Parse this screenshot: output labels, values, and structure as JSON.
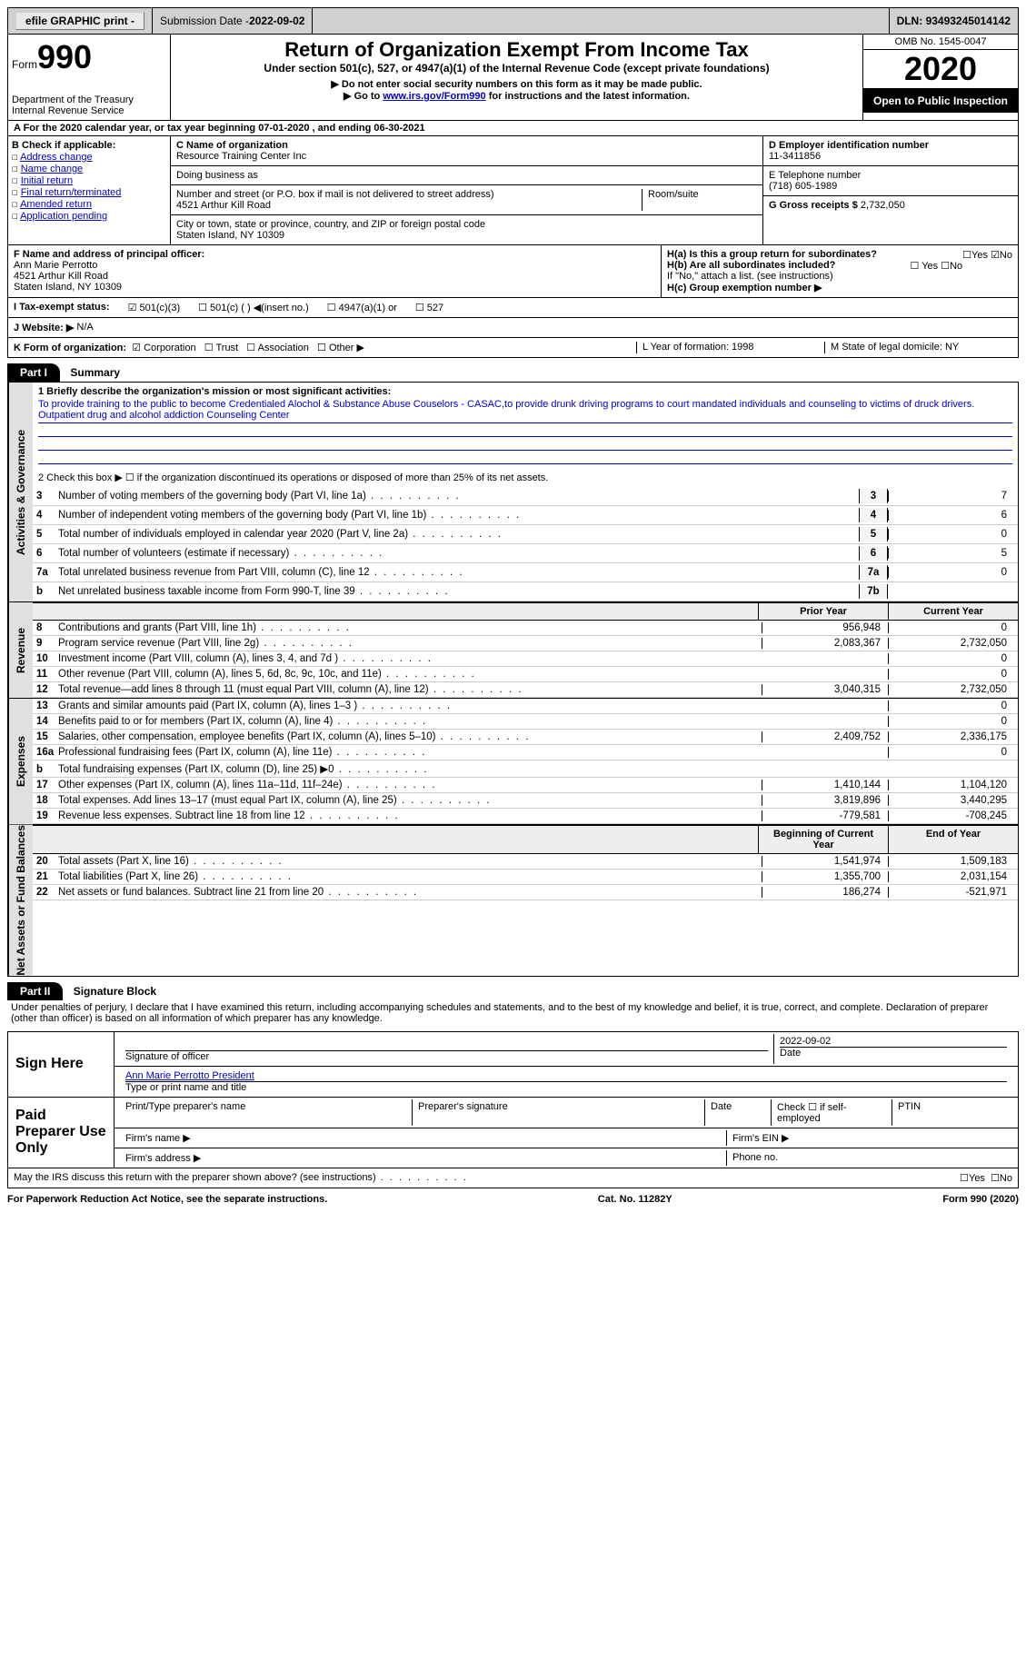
{
  "topbar": {
    "efile": "efile GRAPHIC print -",
    "submission_label": "Submission Date - ",
    "submission_date": "2022-09-02",
    "dln_label": "DLN: ",
    "dln": "93493245014142"
  },
  "header": {
    "form_word": "Form",
    "form_num": "990",
    "dept": "Department of the Treasury",
    "irs": "Internal Revenue Service",
    "title": "Return of Organization Exempt From Income Tax",
    "subtitle": "Under section 501(c), 527, or 4947(a)(1) of the Internal Revenue Code (except private foundations)",
    "note1": "▶ Do not enter social security numbers on this form as it may be made public.",
    "note2_pre": "▶ Go to ",
    "note2_link": "www.irs.gov/Form990",
    "note2_post": " for instructions and the latest information.",
    "omb": "OMB No. 1545-0047",
    "year": "2020",
    "otp": "Open to Public Inspection"
  },
  "row_a": "A For the 2020 calendar year, or tax year beginning 07-01-2020   , and ending 06-30-2021",
  "box_b": {
    "label": "B Check if applicable:",
    "items": [
      "Address change",
      "Name change",
      "Initial return",
      "Final return/terminated",
      "Amended return",
      "Application pending"
    ]
  },
  "box_c": {
    "label": "C Name of organization",
    "name": "Resource Training Center Inc",
    "dba_label": "Doing business as",
    "addr_label": "Number and street (or P.O. box if mail is not delivered to street address)",
    "room_label": "Room/suite",
    "addr": "4521 Arthur Kill Road",
    "city_label": "City or town, state or province, country, and ZIP or foreign postal code",
    "city": "Staten Island, NY  10309"
  },
  "box_d": {
    "label": "D Employer identification number",
    "value": "11-3411856"
  },
  "box_e": {
    "label": "E Telephone number",
    "value": "(718) 605-1989"
  },
  "box_g": {
    "label": "G Gross receipts $ ",
    "value": "2,732,050"
  },
  "box_f": {
    "label": "F  Name and address of principal officer:",
    "name": "Ann Marie Perrotto",
    "addr1": "4521 Arthur Kill Road",
    "addr2": "Staten Island, NY  10309"
  },
  "box_h": {
    "ha": "H(a)  Is this a group return for subordinates?",
    "ha_no": "☑No",
    "ha_yes": "☐Yes",
    "hb": "H(b)  Are all subordinates included?",
    "hb_yes": "☐ Yes",
    "hb_no": "☐No",
    "hb_note": "If \"No,\" attach a list. (see instructions)",
    "hc": "H(c)  Group exemption number ▶"
  },
  "row_i": {
    "label": "I  Tax-exempt status:",
    "c1": "☑ 501(c)(3)",
    "c2": "☐ 501(c) (  ) ◀(insert no.)",
    "c3": "☐ 4947(a)(1) or",
    "c4": "☐ 527"
  },
  "row_j": {
    "label": "J  Website: ▶ ",
    "value": "N/A"
  },
  "row_k": {
    "label": "K Form of organization:",
    "c1": "☑ Corporation",
    "c2": "☐ Trust",
    "c3": "☐ Association",
    "c4": "☐ Other ▶",
    "l": "L Year of formation: 1998",
    "m": "M State of legal domicile: NY"
  },
  "part1": {
    "hdr": "Part I",
    "title": "Summary",
    "side_gov": "Activities & Governance",
    "side_rev": "Revenue",
    "side_exp": "Expenses",
    "side_net": "Net Assets or Fund Balances",
    "l1_label": "1  Briefly describe the organization's mission or most significant activities:",
    "l1_text": "To provide training to the public to become Credentialed Alochol & Substance Abuse Couselors - CASAC,to provide drunk driving programs to court mandated individuals and counseling to victims of druck drivers. Outpatient drug and alcohol addiction Counseling Center",
    "l2": "2  Check this box ▶ ☐  if the organization discontinued its operations or disposed of more than 25% of its net assets.",
    "lines_gov": [
      {
        "n": "3",
        "d": "Number of voting members of the governing body (Part VI, line 1a)",
        "b": "3",
        "v": "7"
      },
      {
        "n": "4",
        "d": "Number of independent voting members of the governing body (Part VI, line 1b)",
        "b": "4",
        "v": "6"
      },
      {
        "n": "5",
        "d": "Total number of individuals employed in calendar year 2020 (Part V, line 2a)",
        "b": "5",
        "v": "0"
      },
      {
        "n": "6",
        "d": "Total number of volunteers (estimate if necessary)",
        "b": "6",
        "v": "5"
      },
      {
        "n": "7a",
        "d": "Total unrelated business revenue from Part VIII, column (C), line 12",
        "b": "7a",
        "v": "0"
      },
      {
        "n": "b",
        "d": "Net unrelated business taxable income from Form 990-T, line 39",
        "b": "7b",
        "v": ""
      }
    ],
    "col_prior": "Prior Year",
    "col_current": "Current Year",
    "col_boy": "Beginning of Current Year",
    "col_eoy": "End of Year",
    "lines_rev": [
      {
        "n": "8",
        "d": "Contributions and grants (Part VIII, line 1h)",
        "p": "956,948",
        "c": "0"
      },
      {
        "n": "9",
        "d": "Program service revenue (Part VIII, line 2g)",
        "p": "2,083,367",
        "c": "2,732,050"
      },
      {
        "n": "10",
        "d": "Investment income (Part VIII, column (A), lines 3, 4, and 7d )",
        "p": "",
        "c": "0"
      },
      {
        "n": "11",
        "d": "Other revenue (Part VIII, column (A), lines 5, 6d, 8c, 9c, 10c, and 11e)",
        "p": "",
        "c": "0"
      },
      {
        "n": "12",
        "d": "Total revenue—add lines 8 through 11 (must equal Part VIII, column (A), line 12)",
        "p": "3,040,315",
        "c": "2,732,050"
      }
    ],
    "lines_exp": [
      {
        "n": "13",
        "d": "Grants and similar amounts paid (Part IX, column (A), lines 1–3 )",
        "p": "",
        "c": "0"
      },
      {
        "n": "14",
        "d": "Benefits paid to or for members (Part IX, column (A), line 4)",
        "p": "",
        "c": "0"
      },
      {
        "n": "15",
        "d": "Salaries, other compensation, employee benefits (Part IX, column (A), lines 5–10)",
        "p": "2,409,752",
        "c": "2,336,175"
      },
      {
        "n": "16a",
        "d": "Professional fundraising fees (Part IX, column (A), line 11e)",
        "p": "",
        "c": "0"
      },
      {
        "n": "b",
        "d": "Total fundraising expenses (Part IX, column (D), line 25) ▶0",
        "p": "shaded",
        "c": "shaded"
      },
      {
        "n": "17",
        "d": "Other expenses (Part IX, column (A), lines 11a–11d, 11f–24e)",
        "p": "1,410,144",
        "c": "1,104,120"
      },
      {
        "n": "18",
        "d": "Total expenses. Add lines 13–17 (must equal Part IX, column (A), line 25)",
        "p": "3,819,896",
        "c": "3,440,295"
      },
      {
        "n": "19",
        "d": "Revenue less expenses. Subtract line 18 from line 12",
        "p": "-779,581",
        "c": "-708,245"
      }
    ],
    "lines_net": [
      {
        "n": "20",
        "d": "Total assets (Part X, line 16)",
        "p": "1,541,974",
        "c": "1,509,183"
      },
      {
        "n": "21",
        "d": "Total liabilities (Part X, line 26)",
        "p": "1,355,700",
        "c": "2,031,154"
      },
      {
        "n": "22",
        "d": "Net assets or fund balances. Subtract line 21 from line 20",
        "p": "186,274",
        "c": "-521,971"
      }
    ]
  },
  "part2": {
    "hdr": "Part II",
    "title": "Signature Block",
    "penalty": "Under penalties of perjury, I declare that I have examined this return, including accompanying schedules and statements, and to the best of my knowledge and belief, it is true, correct, and complete. Declaration of preparer (other than officer) is based on all information of which preparer has any knowledge.",
    "sign_here": "Sign Here",
    "sig_officer": "Signature of officer",
    "sig_date": "2022-09-02",
    "date_label": "Date",
    "officer_name": "Ann Marie Perrotto President",
    "officer_sub": "Type or print name and title",
    "paid_prep": "Paid Preparer Use Only",
    "pp_name": "Print/Type preparer's name",
    "pp_sig": "Preparer's signature",
    "pp_date": "Date",
    "pp_check": "Check ☐ if self-employed",
    "pp_ptin": "PTIN",
    "firm_name": "Firm's name  ▶",
    "firm_ein": "Firm's EIN ▶",
    "firm_addr": "Firm's address ▶",
    "phone": "Phone no.",
    "discuss": "May the IRS discuss this return with the preparer shown above? (see instructions)",
    "discuss_yes": "☐Yes",
    "discuss_no": "☐No"
  },
  "footer": {
    "pra": "For Paperwork Reduction Act Notice, see the separate instructions.",
    "cat": "Cat. No. 11282Y",
    "form": "Form 990 (2020)"
  }
}
